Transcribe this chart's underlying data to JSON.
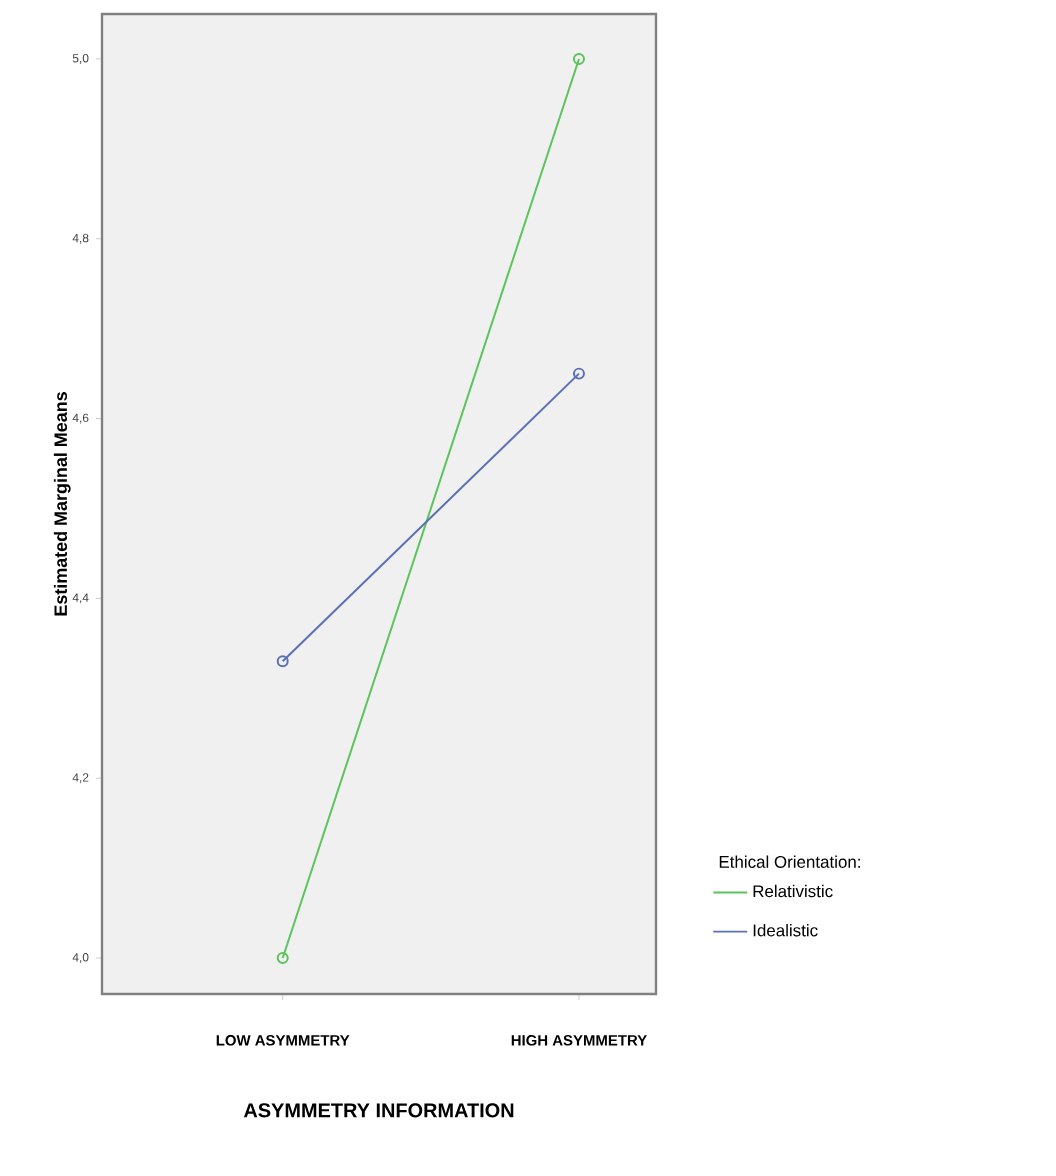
{
  "chart_data": {
    "type": "line",
    "xlabel": "ASYMMETRY INFORMATION",
    "ylabel": "Estimated Marginal Means",
    "legend_title": "Ethical Orientation:",
    "categories": [
      "LOW ASYMMETRY",
      "HIGH ASYMMETRY"
    ],
    "series": [
      {
        "name": "Relativistic",
        "color": "#5cc45c",
        "values": [
          4.0,
          5.0
        ]
      },
      {
        "name": "Idealistic",
        "color": "#5a70b4",
        "values": [
          4.33,
          4.65
        ]
      }
    ],
    "ylim": [
      3.96,
      5.05
    ],
    "yticks": [
      {
        "value": 4.0,
        "label": "4,0"
      },
      {
        "value": 4.2,
        "label": "4,2"
      },
      {
        "value": 4.4,
        "label": "4,4"
      },
      {
        "value": 4.6,
        "label": "4,6"
      },
      {
        "value": 4.8,
        "label": "4,8"
      },
      {
        "value": 5.0,
        "label": "5,0"
      }
    ],
    "grid": false,
    "legend": "bottom right",
    "marker": "circle",
    "line_style": "solid"
  }
}
